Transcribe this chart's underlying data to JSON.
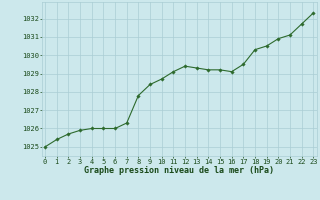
{
  "x": [
    0,
    1,
    2,
    3,
    4,
    5,
    6,
    7,
    8,
    9,
    10,
    11,
    12,
    13,
    14,
    15,
    16,
    17,
    18,
    19,
    20,
    21,
    22,
    23
  ],
  "y": [
    1025.0,
    1025.4,
    1025.7,
    1025.9,
    1026.0,
    1026.0,
    1026.0,
    1026.3,
    1027.8,
    1028.4,
    1028.7,
    1029.1,
    1029.4,
    1029.3,
    1029.2,
    1029.2,
    1029.1,
    1029.5,
    1030.3,
    1030.5,
    1030.9,
    1031.1,
    1031.7,
    1032.3
  ],
  "line_color": "#2d6a2d",
  "marker_color": "#2d6a2d",
  "bg_color": "#cce8ec",
  "grid_color": "#aacdd4",
  "xlabel": "Graphe pression niveau de la mer (hPa)",
  "xlabel_color": "#1a4a1a",
  "xlabel_fontsize": 6.0,
  "tick_color": "#1a4a1a",
  "tick_fontsize": 5.0,
  "ylim": [
    1024.5,
    1032.9
  ],
  "yticks": [
    1025,
    1026,
    1027,
    1028,
    1029,
    1030,
    1031,
    1032
  ],
  "xticks": [
    0,
    1,
    2,
    3,
    4,
    5,
    6,
    7,
    8,
    9,
    10,
    11,
    12,
    13,
    14,
    15,
    16,
    17,
    18,
    19,
    20,
    21,
    22,
    23
  ],
  "xlim": [
    -0.3,
    23.3
  ]
}
